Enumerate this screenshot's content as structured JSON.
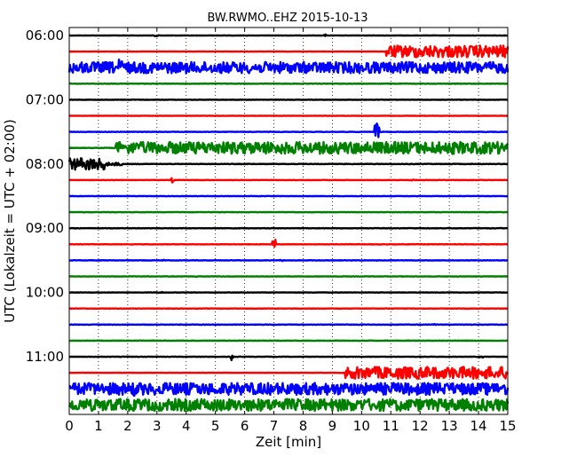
{
  "chart_data": {
    "type": "line",
    "title": "BW.RWMO..EHZ 2015-10-13",
    "xlabel": "Zeit  [min]",
    "ylabel": "UTC (Lokalzeit = UTC + 02:00)",
    "xlim": [
      0,
      15
    ],
    "x_ticks": [
      0,
      1,
      2,
      3,
      4,
      5,
      6,
      7,
      8,
      9,
      10,
      11,
      12,
      13,
      14,
      15
    ],
    "y_ticks": [
      "06:00",
      "07:00",
      "08:00",
      "09:00",
      "10:00",
      "11:00"
    ],
    "grid": true,
    "trace_colors": [
      "#000000",
      "#ff0000",
      "#0000ff",
      "#008000"
    ],
    "traces": [
      {
        "start": "06:00",
        "color": "#000000",
        "noise": 0.04,
        "bursts": [
          [
            2.9,
            0.15,
            0.2
          ],
          [
            8.7,
            0.1,
            0.3
          ]
        ]
      },
      {
        "start": "06:15",
        "color": "#ff0000",
        "noise": 0.04,
        "bursts": [
          [
            10.85,
            15,
            1.6
          ]
        ]
      },
      {
        "start": "06:30",
        "color": "#0000ff",
        "noise": 1.5,
        "bursts": [
          [
            0,
            12,
            1.5
          ],
          [
            12,
            0.5,
            0.6
          ],
          [
            1.7,
            0.1,
            2.2
          ]
        ]
      },
      {
        "start": "06:45",
        "color": "#008000",
        "noise": 0.05,
        "bursts": []
      },
      {
        "start": "07:00",
        "color": "#000000",
        "noise": 0.05,
        "bursts": []
      },
      {
        "start": "07:15",
        "color": "#ff0000",
        "noise": 0.04,
        "bursts": []
      },
      {
        "start": "07:30",
        "color": "#0000ff",
        "noise": 0.06,
        "bursts": [
          [
            10.45,
            0.15,
            2.6
          ]
        ]
      },
      {
        "start": "07:45",
        "color": "#008000",
        "noise": 0.06,
        "bursts": [
          [
            1.6,
            15,
            1.6
          ]
        ]
      },
      {
        "start": "08:00",
        "color": "#000000",
        "noise": 0.06,
        "bursts": [
          [
            0,
            1.3,
            1.6
          ],
          [
            1.3,
            0.5,
            0.4
          ]
        ]
      },
      {
        "start": "08:15",
        "color": "#ff0000",
        "noise": 0.05,
        "bursts": [
          [
            3.5,
            0.1,
            0.7
          ],
          [
            11.7,
            0.1,
            0.2
          ]
        ]
      },
      {
        "start": "08:30",
        "color": "#0000ff",
        "noise": 0.06,
        "bursts": []
      },
      {
        "start": "08:45",
        "color": "#008000",
        "noise": 0.06,
        "bursts": []
      },
      {
        "start": "09:00",
        "color": "#000000",
        "noise": 0.05,
        "bursts": []
      },
      {
        "start": "09:15",
        "color": "#ff0000",
        "noise": 0.04,
        "bursts": [
          [
            6.95,
            0.12,
            1.4
          ]
        ]
      },
      {
        "start": "09:30",
        "color": "#0000ff",
        "noise": 0.06,
        "bursts": [
          [
            3.2,
            0.1,
            0.2
          ],
          [
            7.2,
            0.1,
            0.2
          ]
        ]
      },
      {
        "start": "09:45",
        "color": "#008000",
        "noise": 0.06,
        "bursts": [
          [
            4.3,
            0.1,
            0.25
          ]
        ]
      },
      {
        "start": "10:00",
        "color": "#000000",
        "noise": 0.05,
        "bursts": [
          [
            3.1,
            0.1,
            0.2
          ]
        ]
      },
      {
        "start": "10:15",
        "color": "#ff0000",
        "noise": 0.04,
        "bursts": []
      },
      {
        "start": "10:30",
        "color": "#0000ff",
        "noise": 0.06,
        "bursts": [
          [
            12.4,
            0.1,
            0.3
          ]
        ]
      },
      {
        "start": "10:45",
        "color": "#008000",
        "noise": 0.06,
        "bursts": []
      },
      {
        "start": "11:00",
        "color": "#000000",
        "noise": 0.05,
        "bursts": [
          [
            5.5,
            0.1,
            1.1
          ],
          [
            14,
            0.2,
            0.2
          ]
        ]
      },
      {
        "start": "11:15",
        "color": "#ff0000",
        "noise": 0.04,
        "bursts": [
          [
            9.45,
            15,
            1.6
          ]
        ]
      },
      {
        "start": "11:30",
        "color": "#0000ff",
        "noise": 1.6,
        "bursts": [
          [
            0,
            15,
            1.6
          ],
          [
            2.15,
            0.1,
            2.0
          ]
        ]
      },
      {
        "start": "11:45",
        "color": "#008000",
        "noise": 1.6,
        "bursts": [
          [
            0,
            15,
            1.6
          ]
        ]
      }
    ]
  }
}
